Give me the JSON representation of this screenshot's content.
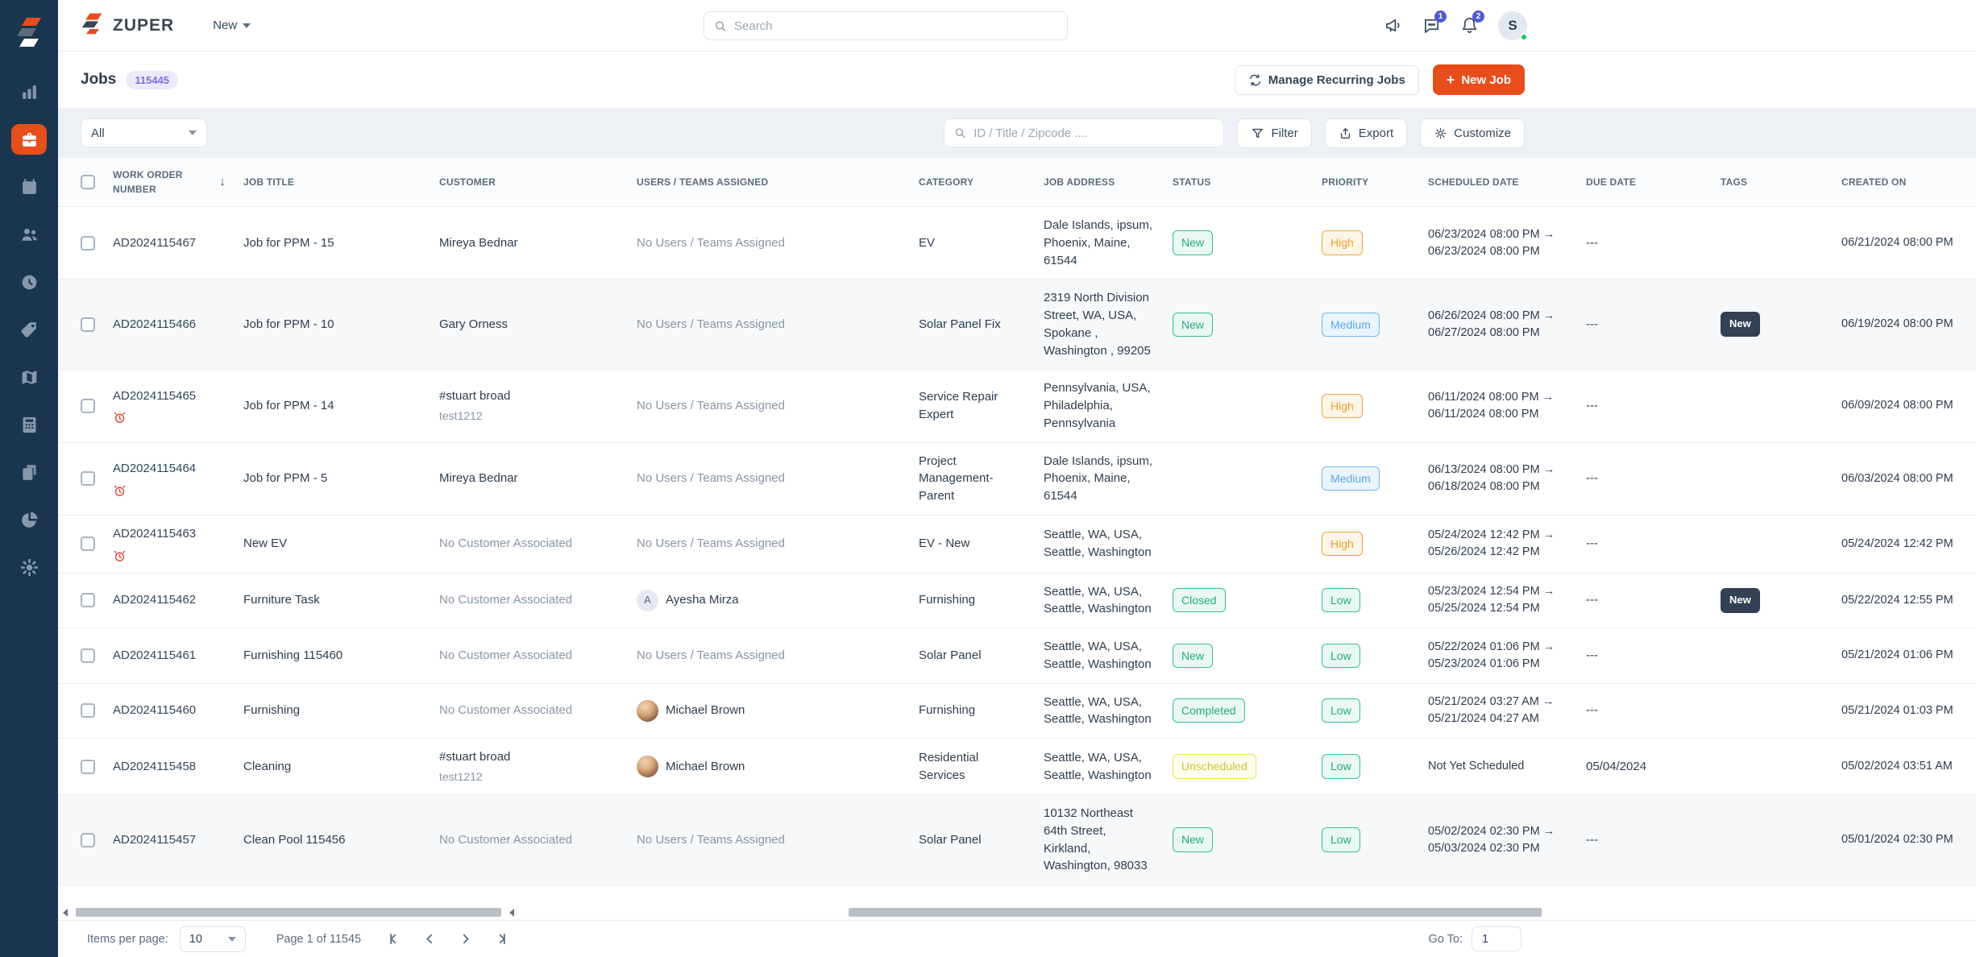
{
  "topbar": {
    "brand": "ZUPER",
    "new_menu_label": "New",
    "search_placeholder": "Search",
    "chat_badge": "1",
    "bell_badge": "2",
    "avatar_initial": "S"
  },
  "page_header": {
    "title": "Jobs",
    "count": "115445",
    "manage_recurring_label": "Manage Recurring Jobs",
    "new_job_label": "New Job"
  },
  "filter_bar": {
    "view_filter_value": "All",
    "search_placeholder": "ID / Title / Zipcode ....",
    "filter_label": "Filter",
    "export_label": "Export",
    "customize_label": "Customize"
  },
  "sidebar": {
    "items": [
      {
        "name": "dashboard",
        "active": false
      },
      {
        "name": "jobs",
        "active": true
      },
      {
        "name": "dispatch-board",
        "active": false
      },
      {
        "name": "teams",
        "active": false
      },
      {
        "name": "timesheets",
        "active": false
      },
      {
        "name": "tags",
        "active": false
      },
      {
        "name": "map",
        "active": false
      },
      {
        "name": "invoices",
        "active": false
      },
      {
        "name": "documents",
        "active": false
      },
      {
        "name": "reports",
        "active": false
      },
      {
        "name": "settings",
        "active": false
      }
    ]
  },
  "table": {
    "columns": [
      "WORK ORDER NUMBER",
      "JOB TITLE",
      "CUSTOMER",
      "USERS / TEAMS ASSIGNED",
      "CATEGORY",
      "JOB ADDRESS",
      "STATUS",
      "PRIORITY",
      "SCHEDULED DATE",
      "DUE DATE",
      "TAGS",
      "CREATED ON"
    ],
    "rows": [
      {
        "id": "AD2024115467",
        "overdue": false,
        "shaded": false,
        "title": "Job for PPM - 15",
        "customer": "Mireya Bednar",
        "customer_sub": "",
        "customer_muted": false,
        "assignee": {
          "type": "none",
          "label": "No Users / Teams Assigned"
        },
        "category": "EV",
        "address": "Dale Islands, ipsum, Phoenix, Maine, 61544",
        "status": "New",
        "priority": "High",
        "scheduled": [
          "06/23/2024 08:00 PM →",
          "06/23/2024 08:00 PM"
        ],
        "due": "---",
        "tags": [],
        "created": "06/21/2024 08:00 PM"
      },
      {
        "id": "AD2024115466",
        "overdue": false,
        "shaded": true,
        "title": "Job for PPM - 10",
        "customer": "Gary Orness",
        "customer_sub": "",
        "customer_muted": false,
        "assignee": {
          "type": "none",
          "label": "No Users / Teams Assigned"
        },
        "category": "Solar Panel Fix",
        "address": "2319 North Division Street, WA, USA, Spokane , Washington , 99205",
        "status": "New",
        "priority": "Medium",
        "scheduled": [
          "06/26/2024 08:00 PM →",
          "06/27/2024 08:00 PM"
        ],
        "due": "---",
        "tags": [
          "New"
        ],
        "created": "06/19/2024 08:00 PM"
      },
      {
        "id": "AD2024115465",
        "overdue": true,
        "shaded": false,
        "title": "Job for PPM - 14",
        "customer": "#stuart broad",
        "customer_sub": "test1212",
        "customer_muted": false,
        "assignee": {
          "type": "none",
          "label": "No Users / Teams Assigned"
        },
        "category": "Service Repair Expert",
        "address": "Pennsylvania, USA, Philadelphia, Pennsylvania",
        "status": "",
        "priority": "High",
        "scheduled": [
          "06/11/2024 08:00 PM →",
          "06/11/2024 08:00 PM"
        ],
        "due": "---",
        "tags": [],
        "created": "06/09/2024 08:00 PM"
      },
      {
        "id": "AD2024115464",
        "overdue": true,
        "shaded": false,
        "title": "Job for PPM - 5",
        "customer": "Mireya Bednar",
        "customer_sub": "",
        "customer_muted": false,
        "assignee": {
          "type": "none",
          "label": "No Users / Teams Assigned"
        },
        "category": "Project Management-Parent",
        "address": "Dale Islands, ipsum, Phoenix, Maine, 61544",
        "status": "",
        "priority": "Medium",
        "scheduled": [
          "06/13/2024 08:00 PM →",
          "06/18/2024 08:00 PM"
        ],
        "due": "---",
        "tags": [],
        "created": "06/03/2024 08:00 PM"
      },
      {
        "id": "AD2024115463",
        "overdue": true,
        "shaded": false,
        "title": "New EV",
        "customer": "No Customer Associated",
        "customer_sub": "",
        "customer_muted": true,
        "assignee": {
          "type": "none",
          "label": "No Users / Teams Assigned"
        },
        "category": "EV - New",
        "address": "Seattle, WA, USA, Seattle, Washington",
        "status": "",
        "priority": "High",
        "scheduled": [
          "05/24/2024 12:42 PM →",
          "05/26/2024 12:42 PM"
        ],
        "due": "---",
        "tags": [],
        "created": "05/24/2024 12:42 PM"
      },
      {
        "id": "AD2024115462",
        "overdue": false,
        "shaded": false,
        "title": "Furniture Task",
        "customer": "No Customer Associated",
        "customer_sub": "",
        "customer_muted": true,
        "assignee": {
          "type": "initial",
          "initial": "A",
          "label": "Ayesha Mirza"
        },
        "category": "Furnishing",
        "address": "Seattle, WA, USA, Seattle, Washington",
        "status": "Closed",
        "priority": "Low",
        "scheduled": [
          "05/23/2024 12:54 PM →",
          "05/25/2024 12:54 PM"
        ],
        "due": "---",
        "tags": [
          "New"
        ],
        "created": "05/22/2024 12:55 PM"
      },
      {
        "id": "AD2024115461",
        "overdue": false,
        "shaded": false,
        "title": "Furnishing 115460",
        "customer": "No Customer Associated",
        "customer_sub": "",
        "customer_muted": true,
        "assignee": {
          "type": "none",
          "label": "No Users / Teams Assigned"
        },
        "category": "Solar Panel",
        "address": "Seattle, WA, USA, Seattle, Washington",
        "status": "New",
        "priority": "Low",
        "scheduled": [
          "05/22/2024 01:06 PM →",
          "05/23/2024 01:06 PM"
        ],
        "due": "---",
        "tags": [],
        "created": "05/21/2024 01:06 PM"
      },
      {
        "id": "AD2024115460",
        "overdue": false,
        "shaded": false,
        "title": "Furnishing",
        "customer": "No Customer Associated",
        "customer_sub": "",
        "customer_muted": true,
        "assignee": {
          "type": "photo",
          "label": "Michael Brown"
        },
        "category": "Furnishing",
        "address": "Seattle, WA, USA, Seattle, Washington",
        "status": "Completed",
        "priority": "Low",
        "scheduled": [
          "05/21/2024 03:27 AM →",
          "05/21/2024 04:27 AM"
        ],
        "due": "---",
        "tags": [],
        "created": "05/21/2024 01:03 PM"
      },
      {
        "id": "AD2024115458",
        "overdue": false,
        "shaded": false,
        "title": "Cleaning",
        "customer": "#stuart broad",
        "customer_sub": "test1212",
        "customer_muted": false,
        "assignee": {
          "type": "photo",
          "label": "Michael Brown"
        },
        "category": "Residential Services",
        "address": "Seattle, WA, USA, Seattle, Washington",
        "status": "Unscheduled",
        "priority": "Low",
        "scheduled": [
          "Not Yet Scheduled"
        ],
        "due": "05/04/2024",
        "tags": [],
        "created": "05/02/2024 03:51 AM"
      },
      {
        "id": "AD2024115457",
        "overdue": false,
        "shaded": true,
        "title": "Clean Pool 115456",
        "customer": "No Customer Associated",
        "customer_sub": "",
        "customer_muted": true,
        "assignee": {
          "type": "none",
          "label": "No Users / Teams Assigned"
        },
        "category": "Solar Panel",
        "address": "10132 Northeast 64th Street, Kirkland, Washington, 98033",
        "status": "New",
        "priority": "Low",
        "scheduled": [
          "05/02/2024 02:30 PM →",
          "05/03/2024 02:30 PM"
        ],
        "due": "---",
        "tags": [],
        "created": "05/01/2024 02:30 PM"
      }
    ]
  },
  "footer": {
    "items_per_page_label": "Items per page:",
    "items_per_page_value": "10",
    "page_info": "Page 1 of 11545",
    "goto_label": "Go To:",
    "goto_value": "1"
  },
  "colors": {
    "accent_orange": "#E84E1B",
    "sidebar_bg": "#19364E",
    "status_green": "#35C08E",
    "priority_orange": "#F0A23C",
    "priority_blue": "#77B8EA",
    "status_yellow": "#E8E24E",
    "tag_dark": "#344055",
    "notification_blue": "#4D5BD0",
    "count_badge_bg": "#ECE9FB",
    "count_badge_text": "#7E6FE0",
    "online_green": "#22C55E"
  }
}
